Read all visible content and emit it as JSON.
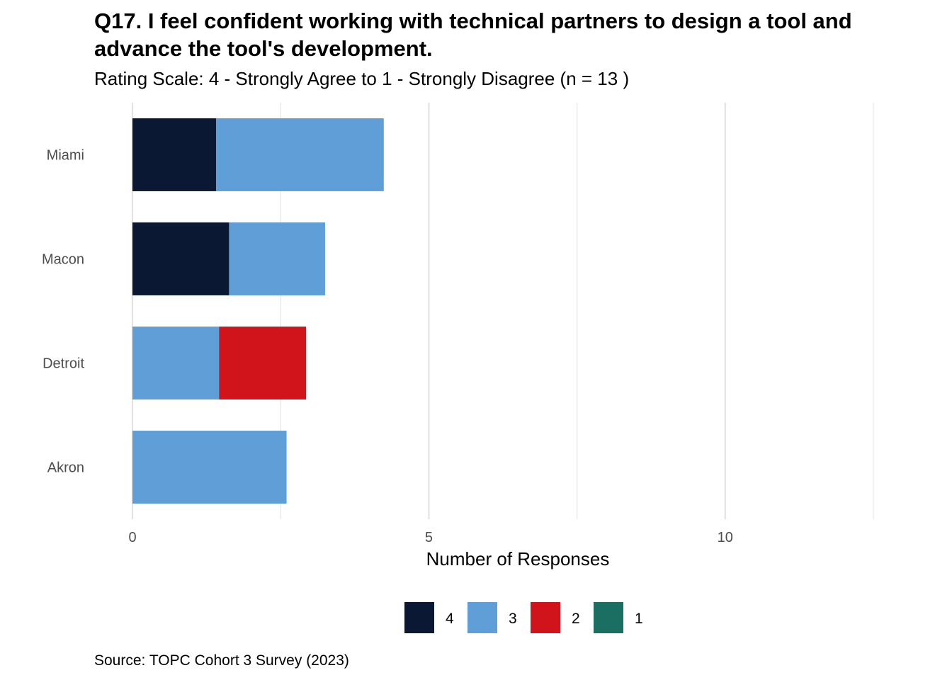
{
  "chart_data": {
    "type": "bar",
    "orientation": "horizontal",
    "stacked": true,
    "title": "Q17. I feel confident working with technical partners to design a tool and advance the tool's development.",
    "subtitle": "Rating Scale: 4 - Strongly Agree to 1 - Strongly Disagree (n = 13 )",
    "caption": "Source: TOPC Cohort 3 Survey (2023)",
    "xlabel": "Number of Responses",
    "ylabel": "",
    "xlim": [
      0,
      12.5
    ],
    "xticks": [
      0,
      5,
      10
    ],
    "grid": true,
    "legend_position": "bottom",
    "categories": [
      "Miami",
      "Macon",
      "Detroit",
      "Akron"
    ],
    "series": [
      {
        "name": "4",
        "color": "#0a1833",
        "values": [
          1.41,
          1.63,
          0,
          0
        ]
      },
      {
        "name": "3",
        "color": "#5f9ed6",
        "values": [
          2.83,
          1.62,
          1.46,
          2.6
        ]
      },
      {
        "name": "2",
        "color": "#d1141b",
        "values": [
          0,
          0,
          1.47,
          0
        ]
      },
      {
        "name": "1",
        "color": "#1b6e62",
        "values": [
          0,
          0,
          0,
          0
        ]
      }
    ]
  }
}
